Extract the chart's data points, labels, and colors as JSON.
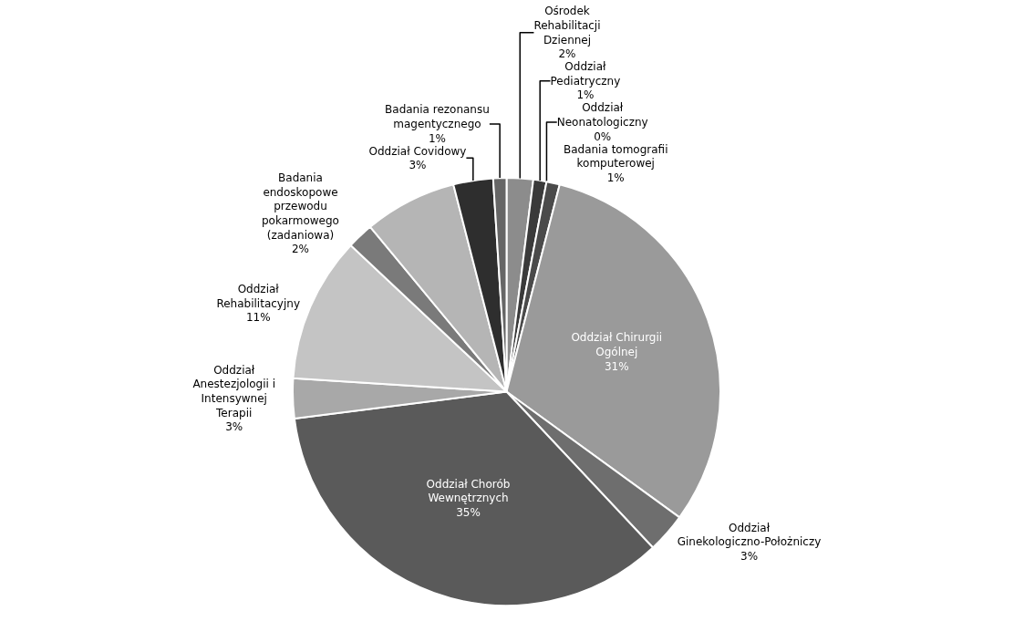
{
  "chart_data": {
    "type": "pie",
    "categories": [
      "Ośrodek Rehabilitacji Dziennej",
      "Oddział Pediatryczny",
      "Oddział Neonatologiczny",
      "Badania tomografii komputerowej",
      "Oddział Chirurgii Ogólnej",
      "Oddział Ginekologiczno-Położniczy",
      "Oddział Chorób Wewnętrznych",
      "Oddział Anestezjologii i Intensywnej Terapii",
      "Oddział Rehabilitacyjny",
      "Badania endoskopowe przewodu pokarmowego (zadaniowa)",
      null,
      "Oddział Covidowy",
      "Badania rezonansu magentycznego"
    ],
    "values": [
      2,
      1,
      0,
      1,
      31,
      3,
      35,
      3,
      11,
      2,
      7,
      3,
      1
    ],
    "value_labels": [
      "2%",
      "1%",
      "0%",
      "1%",
      "31%",
      "3%",
      "35%",
      "3%",
      "11%",
      "2%",
      null,
      "3%",
      "1%"
    ],
    "colors": [
      "#8c8c8c",
      "#3a3a3a",
      "#555555",
      "#4a4a4a",
      "#9a9a9a",
      "#6e6e6e",
      "#5a5a5a",
      "#a8a8a8",
      "#c4c4c4",
      "#7a7a7a",
      "#b5b5b5",
      "#2e2e2e",
      "#666666"
    ]
  }
}
